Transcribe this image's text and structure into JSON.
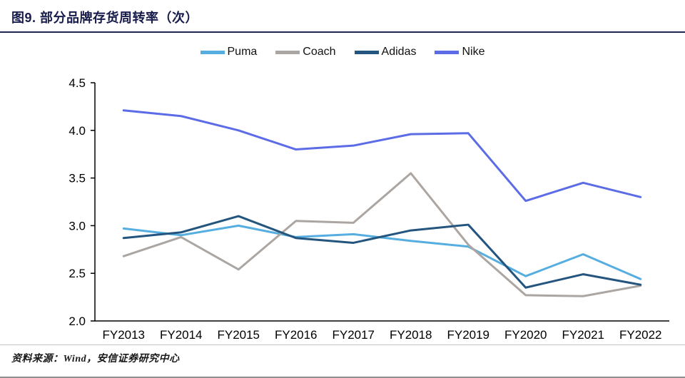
{
  "header": {
    "title": "图9. 部分品牌存货周转率（次）"
  },
  "footer": {
    "source": "资料来源：Wind，安信证券研究中心"
  },
  "chart_data": {
    "type": "line",
    "title": "部分品牌存货周转率（次）",
    "categories": [
      "FY2013",
      "FY2014",
      "FY2015",
      "FY2016",
      "FY2017",
      "FY2018",
      "FY2019",
      "FY2020",
      "FY2021",
      "FY2022"
    ],
    "series": [
      {
        "name": "Puma",
        "color": "#56aee0",
        "values": [
          2.97,
          2.9,
          3.0,
          2.88,
          2.91,
          2.84,
          2.78,
          2.47,
          2.7,
          2.44
        ]
      },
      {
        "name": "Coach",
        "color": "#aca6a2",
        "values": [
          2.68,
          2.88,
          2.54,
          3.05,
          3.03,
          3.55,
          2.8,
          2.27,
          2.26,
          2.37
        ]
      },
      {
        "name": "Adidas",
        "color": "#24557e",
        "values": [
          2.87,
          2.93,
          3.1,
          2.87,
          2.82,
          2.95,
          3.01,
          2.35,
          2.49,
          2.38
        ]
      },
      {
        "name": "Nike",
        "color": "#5c6be6",
        "values": [
          4.21,
          4.15,
          4.0,
          3.8,
          3.84,
          3.96,
          3.97,
          3.26,
          3.45,
          3.3
        ]
      }
    ],
    "xlabel": "",
    "ylabel": "",
    "ylim": [
      2.0,
      4.5
    ],
    "ytick_step": 0.5,
    "grid": false,
    "legend_position": "top",
    "axis_color": "#000000"
  }
}
